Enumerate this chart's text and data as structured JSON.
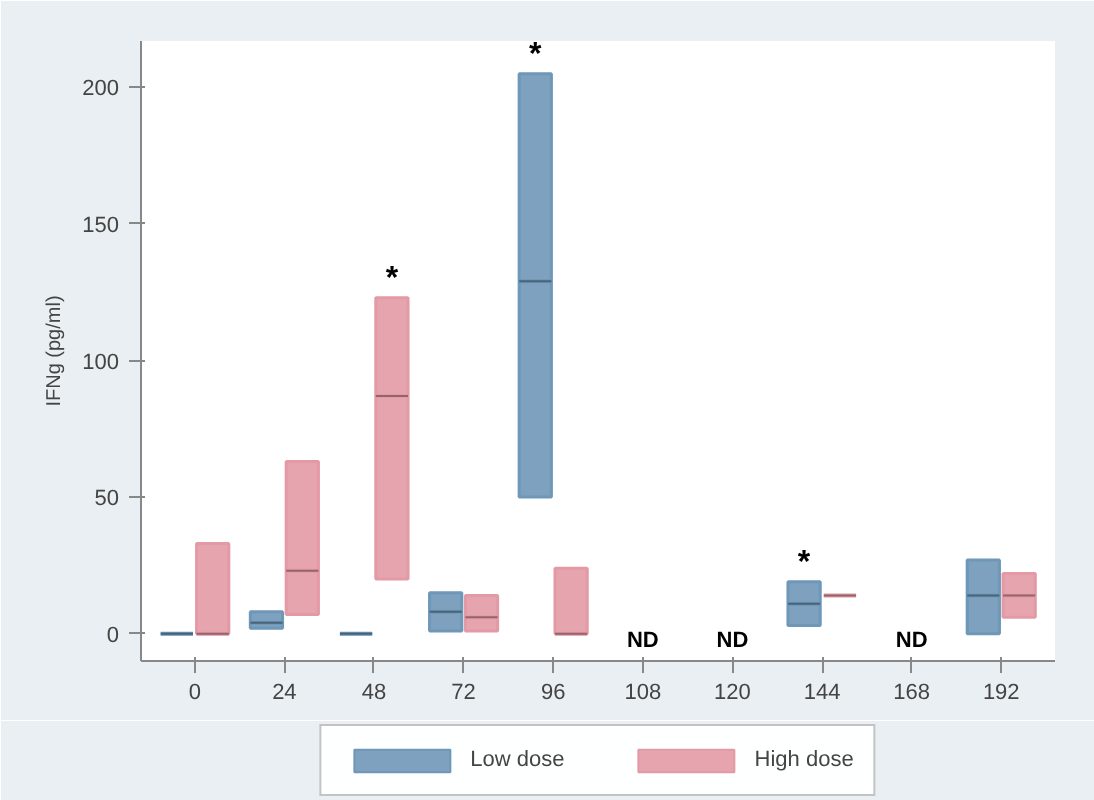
{
  "chart_data": {
    "type": "box",
    "ylabel": "IFNg (pg/ml)",
    "categories": [
      "0",
      "24",
      "48",
      "72",
      "96",
      "108",
      "120",
      "144",
      "168",
      "192"
    ],
    "series": [
      {
        "name": "Low dose",
        "color": "#6f97b8",
        "boxes": [
          {
            "low": 0,
            "q1": 0,
            "median": 0,
            "q3": 0,
            "high": 0
          },
          {
            "low": 2,
            "q1": 2,
            "median": 4,
            "q3": 8,
            "high": 8
          },
          {
            "low": 0,
            "q1": 0,
            "median": 0,
            "q3": 0,
            "high": 0
          },
          {
            "low": 1,
            "q1": 1,
            "median": 8,
            "q3": 15,
            "high": 15
          },
          {
            "low": 50,
            "q1": 50,
            "median": 129,
            "q3": 205,
            "high": 205
          },
          null,
          null,
          {
            "low": 3,
            "q1": 3,
            "median": 11,
            "q3": 19,
            "high": 19
          },
          null,
          {
            "low": 0,
            "q1": 0,
            "median": 14,
            "q3": 27,
            "high": 27
          }
        ]
      },
      {
        "name": "High dose",
        "color": "#e39aa5",
        "boxes": [
          {
            "low": 0,
            "q1": 0,
            "median": 0,
            "q3": 33,
            "high": 33
          },
          {
            "low": 7,
            "q1": 7,
            "median": 23,
            "q3": 63,
            "high": 63
          },
          {
            "low": 20,
            "q1": 20,
            "median": 87,
            "q3": 123,
            "high": 123
          },
          {
            "low": 1,
            "q1": 1,
            "median": 6,
            "q3": 14,
            "high": 14
          },
          {
            "low": 0,
            "q1": 0,
            "median": 0,
            "q3": 24,
            "high": 24
          },
          null,
          null,
          {
            "low": 14,
            "q1": 14,
            "median": 14,
            "q3": 14,
            "high": 14
          },
          null,
          {
            "low": 6,
            "q1": 6,
            "median": 14,
            "q3": 22,
            "high": 22
          }
        ]
      }
    ],
    "ylim": [
      -10,
      217
    ],
    "yticks": [
      0,
      50,
      100,
      150,
      200
    ],
    "grid": false,
    "legend": "bottom",
    "annotations": [
      {
        "text": "*",
        "x": "48",
        "y": 123
      },
      {
        "text": "*",
        "x": "96",
        "y": 205
      },
      {
        "text": "*",
        "x": "144",
        "y": 19
      },
      "ND",
      "ND",
      "ND"
    ]
  }
}
